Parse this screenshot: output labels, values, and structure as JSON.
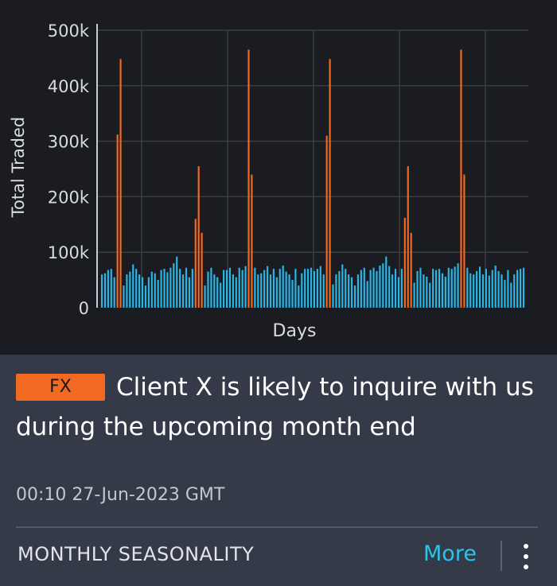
{
  "card": {
    "tag": "FX",
    "headline": "Client X is likely to inquire with us during the upcoming month end",
    "timestamp": "00:10 27-Jun-2023 GMT",
    "section_title": "MONTHLY SEASONALITY",
    "more_label": "More",
    "menu_icon": "kebab-vertical-icon"
  },
  "chart_data": {
    "type": "bar",
    "xlabel": "Days",
    "ylabel": "Total Traded",
    "ylim": [
      0,
      500000
    ],
    "yticks": [
      0,
      100000,
      200000,
      300000,
      400000,
      500000
    ],
    "ytick_labels": [
      "0",
      "100k",
      "200k",
      "300k",
      "400k",
      "500k"
    ],
    "grid": true,
    "colors": {
      "normal": "#29b6e6",
      "month_end": "#f26a21"
    },
    "series": [
      {
        "values": [
          60000,
          62000,
          68000,
          70000,
          55000,
          312000,
          448000,
          40000,
          60000,
          65000,
          78000,
          70000,
          60000,
          55000,
          40000,
          55000,
          65000,
          62000,
          50000,
          68000,
          70000,
          64000,
          72000,
          80000,
          92000,
          70000,
          60000,
          72000,
          55000,
          70000,
          160000,
          255000,
          135000,
          40000,
          65000,
          72000,
          60000,
          55000,
          45000,
          68000,
          68000,
          72000,
          60000,
          55000,
          72000,
          68000,
          75000,
          465000,
          240000,
          72000,
          60000,
          62000,
          68000,
          75000,
          60000,
          70000,
          55000,
          70000,
          76000,
          65000,
          60000,
          50000,
          70000,
          40000,
          62000,
          70000,
          70000,
          72000,
          66000,
          70000,
          75000,
          60000,
          310000,
          448000,
          42000,
          60000,
          66000,
          78000,
          70000,
          60000,
          55000,
          40000,
          60000,
          68000,
          72000,
          48000,
          68000,
          72000,
          66000,
          76000,
          80000,
          92000,
          75000,
          60000,
          70000,
          55000,
          70000,
          162000,
          255000,
          135000,
          45000,
          66000,
          72000,
          60000,
          56000,
          45000,
          70000,
          68000,
          70000,
          62000,
          56000,
          72000,
          70000,
          74000,
          80000,
          465000,
          240000,
          72000,
          62000,
          60000,
          66000,
          74000,
          60000,
          70000,
          58000,
          68000,
          76000,
          66000,
          60000,
          50000,
          68000,
          45000,
          60000,
          68000,
          70000,
          72000
        ]
      }
    ]
  }
}
